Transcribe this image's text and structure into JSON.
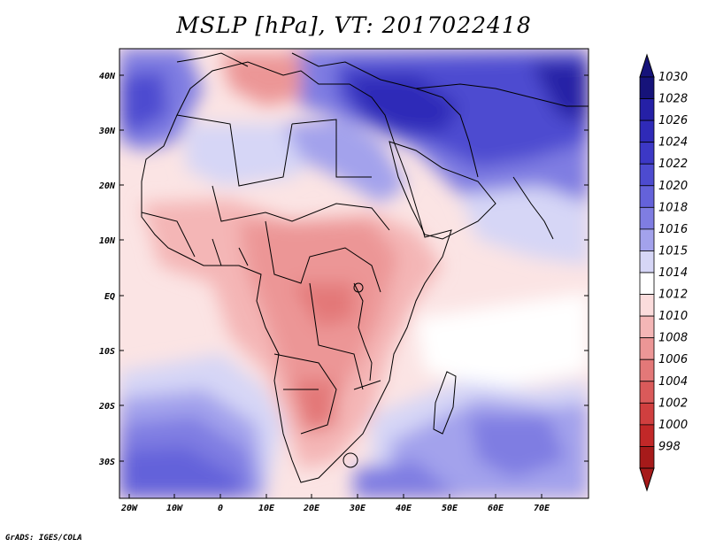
{
  "title": "MSLP [hPa], VT: 2017022418",
  "footer": "GrADS: IGES/COLA",
  "map": {
    "lat_labels": [
      "40N",
      "30N",
      "20N",
      "10N",
      "EQ",
      "10S",
      "20S",
      "30S"
    ],
    "lon_labels": [
      "20W",
      "10W",
      "0",
      "10E",
      "20E",
      "30E",
      "40E",
      "50E",
      "60E",
      "70E"
    ]
  },
  "colorbar": {
    "levels": [
      "1030",
      "1028",
      "1026",
      "1024",
      "1022",
      "1020",
      "1018",
      "1016",
      "1015",
      "1014",
      "1012",
      "1010",
      "1008",
      "1006",
      "1004",
      "1002",
      "1000",
      "998"
    ],
    "colors": [
      "#16137a",
      "#2520a6",
      "#2f2ab8",
      "#3c38c6",
      "#4d4bd0",
      "#6462da",
      "#7f7de2",
      "#a3a2ec",
      "#d6d6f6",
      "#ffffff",
      "#fbdcdc",
      "#f4b6b6",
      "#ec9696",
      "#e37878",
      "#da5a5a",
      "#d03f3f",
      "#c22828",
      "#a61a1a"
    ],
    "top_color": "#16137a",
    "bottom_color": "#a61a1a"
  }
}
